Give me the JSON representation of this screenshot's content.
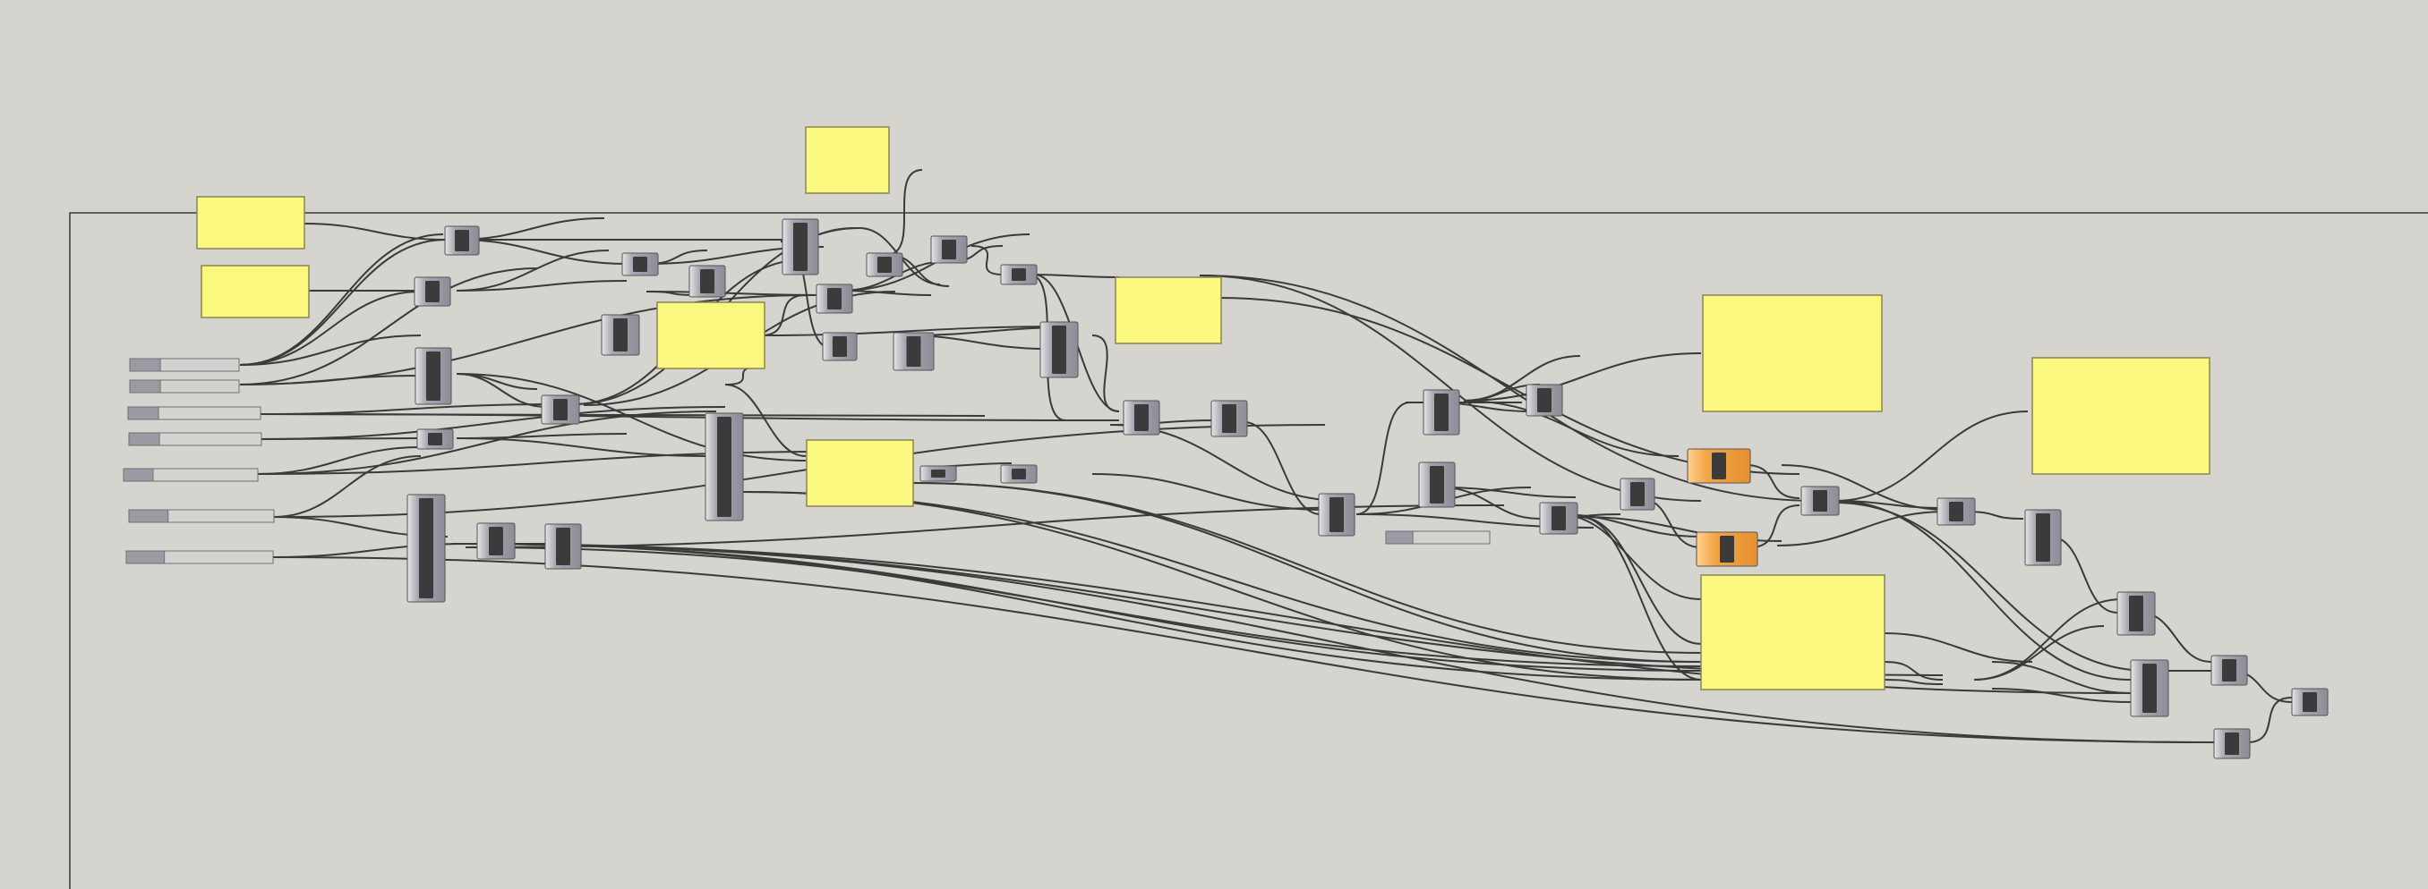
{
  "window": {
    "title": ""
  },
  "colors": {
    "canvas": "#d6d4cf",
    "panel_fill": "#fbf880",
    "panel_stroke": "#8a8550",
    "component_fill": "#9a98a3",
    "component_highlight": "#dcdcdc",
    "component_core": "#3b3b3b",
    "warning_component": "#f2a646",
    "slider_track": "#d4d3d0",
    "slider_fill": "#9c9aa5",
    "wire": "#3a3a3a"
  },
  "icons": {
    "component": "grasshopper-component-icon",
    "panel": "note-panel-icon",
    "slider": "number-slider-icon"
  }
}
